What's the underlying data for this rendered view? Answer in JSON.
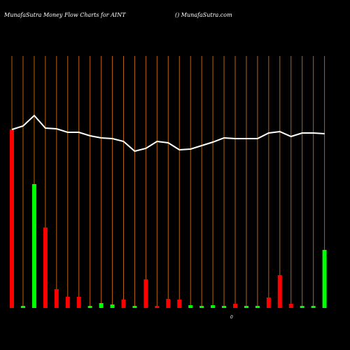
{
  "chart_data": {
    "type": "bar",
    "title": "MunafaSutra  Money Flow  Charts for AINT",
    "subtitle": "() MunafaSutra.com",
    "annotation": "0",
    "categories": [
      null,
      null,
      null,
      null,
      null,
      null,
      null,
      null,
      null,
      null,
      null,
      null,
      null,
      null,
      null,
      null,
      null,
      null,
      null,
      null,
      null,
      null,
      null,
      null,
      null,
      null,
      null,
      null,
      null
    ],
    "values": [
      255,
      3,
      177,
      115,
      27,
      16,
      16,
      3,
      7,
      5,
      12,
      3,
      41,
      3,
      13,
      12,
      4,
      3,
      4,
      3,
      6,
      3,
      3,
      15,
      47,
      6,
      3,
      3,
      83
    ],
    "colors": [
      "#ff0000",
      "#00ff00",
      "#00ff00",
      "#ff0000",
      "#ff0000",
      "#ff0000",
      "#ff0000",
      "#00ff00",
      "#00ff00",
      "#00ff00",
      "#ff0000",
      "#00ff00",
      "#ff0000",
      "#ff0000",
      "#ff0000",
      "#ff0000",
      "#00ff00",
      "#00ff00",
      "#00ff00",
      "#00ff00",
      "#ff0000",
      "#00ff00",
      "#00ff00",
      "#ff0000",
      "#ff0000",
      "#ff0000",
      "#00ff00",
      "#00ff00",
      "#00ff00"
    ],
    "line": {
      "color": "#ffffff",
      "values": [
        255,
        260,
        275,
        257,
        256,
        251,
        251,
        246,
        243,
        242,
        238,
        224,
        228,
        238,
        236,
        226,
        227,
        232,
        237,
        243,
        242,
        242,
        242,
        250,
        252,
        245,
        250,
        250,
        249
      ]
    },
    "ylim": [
      0,
      360
    ],
    "grid_color": "#b8620b"
  }
}
